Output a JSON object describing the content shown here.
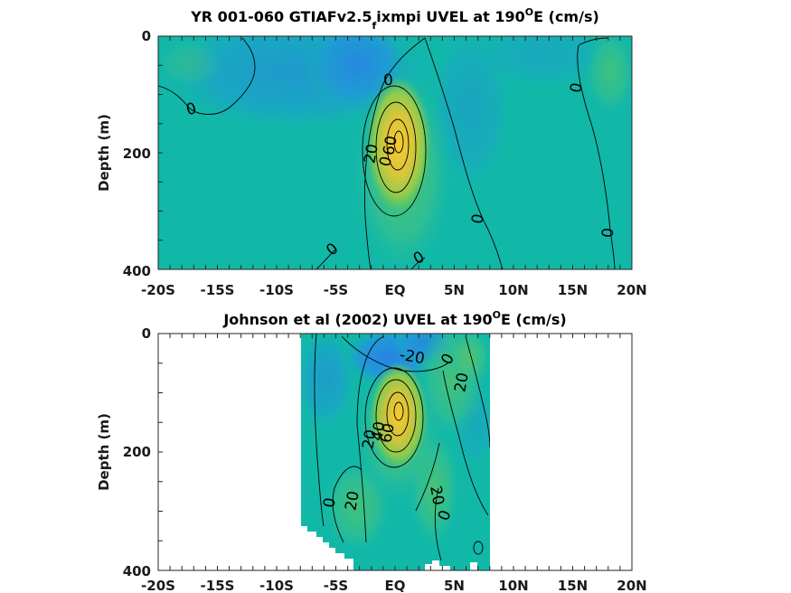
{
  "colors": {
    "background_field": "#11b8a8",
    "negative": "#2a7fe8",
    "moderate": "#5cc85a",
    "strong": "#f3c332",
    "contour": "#000000"
  },
  "chart_data": [
    {
      "type": "heatmap",
      "title_parts": {
        "main": "YR 001-060 GTIAFv2.5",
        "sub": "f",
        "rest": "ixmpi UVEL at 190",
        "sup": "O",
        "end": "E (cm/s)"
      },
      "ylabel": "Depth (m)",
      "xlabel": "",
      "x_ticks": [
        "-20S",
        "-15S",
        "-10S",
        "-5S",
        "EQ",
        "5N",
        "10N",
        "15N",
        "20N"
      ],
      "y_ticks": [
        "0",
        "200",
        "400"
      ],
      "xlim": [
        -20,
        20
      ],
      "ylim": [
        0,
        400
      ],
      "colormap": "parula",
      "data_extent": [
        -20,
        20
      ],
      "contour_labels": [
        "0",
        "0",
        "0",
        "0",
        "0",
        "0",
        "20",
        "60",
        "0",
        "0"
      ],
      "core": {
        "lat": 0.3,
        "depth": 160,
        "speed": 80
      }
    },
    {
      "type": "heatmap",
      "title_parts": {
        "main": "Johnson et al (2002) UVEL at 190",
        "sup": "O",
        "end": "E (cm/s)"
      },
      "ylabel": "Depth (m)",
      "xlabel": "",
      "x_ticks": [
        "-20S",
        "-15S",
        "-10S",
        "-5S",
        "EQ",
        "5N",
        "10N",
        "15N",
        "20N"
      ],
      "y_ticks": [
        "0",
        "200",
        "400"
      ],
      "xlim": [
        -20,
        20
      ],
      "ylim": [
        0,
        400
      ],
      "colormap": "parula",
      "data_extent": [
        -8,
        8
      ],
      "contour_labels": [
        "-20",
        "20",
        "20",
        "40",
        "60",
        "20",
        "0",
        "20",
        "0",
        "0"
      ],
      "core": {
        "lat": 0.3,
        "depth": 150,
        "speed": 80
      }
    }
  ]
}
